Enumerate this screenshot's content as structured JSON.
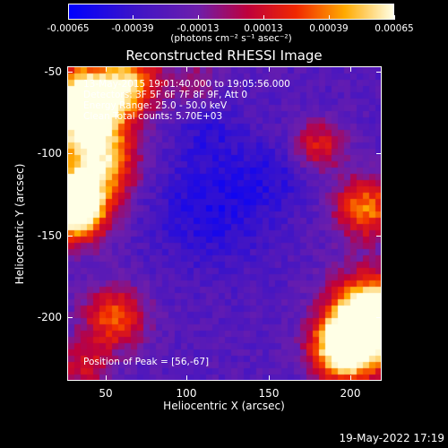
{
  "colorbar": {
    "ticks": [
      "-0.00065",
      "-0.00039",
      "-0.00013",
      "0.00013",
      "0.00039",
      "0.00065"
    ],
    "units": "(photons cm⁻² s⁻¹ asec⁻²)"
  },
  "title": "Reconstructed RHESSI Image",
  "annotations": {
    "time": "13-May-2015 19:01:40.000 to 19:05:56.000",
    "detectors": "Detectors: 3F 5F 6F 7F 8F 9F, Att 0",
    "energy": "Energy Range: 25.0 - 50.0 keV",
    "clean": "Clean  Total counts: 5.70E+03",
    "peak": "Position of Peak = [56,-67]"
  },
  "axes": {
    "xlabel": "Heliocentric X (arcsec)",
    "ylabel": "Heliocentric Y (arcsec)",
    "xlim": [
      26,
      219
    ],
    "ylim": [
      -240,
      -47
    ],
    "xticks": [
      "50",
      "100",
      "150",
      "200"
    ],
    "yticks": [
      "-50",
      "-100",
      "-150",
      "-200"
    ]
  },
  "datestamp": "19-May-2022 17:19",
  "chart_data": {
    "type": "heatmap",
    "title": "Reconstructed RHESSI Image",
    "xlabel": "Heliocentric X (arcsec)",
    "ylabel": "Heliocentric Y (arcsec)",
    "xlim": [
      26,
      219
    ],
    "ylim": [
      -240,
      -47
    ],
    "color_range": [
      -0.00065,
      0.00065
    ],
    "colormap": "blue-purple-red-yellow-white",
    "peak_position": [
      56,
      -67
    ],
    "description_regions": [
      {
        "region": "upper-left",
        "level": "high"
      },
      {
        "region": "left-middle",
        "level": "high"
      },
      {
        "region": "lower-right",
        "level": "high"
      },
      {
        "region": "center",
        "level": "low"
      }
    ]
  }
}
